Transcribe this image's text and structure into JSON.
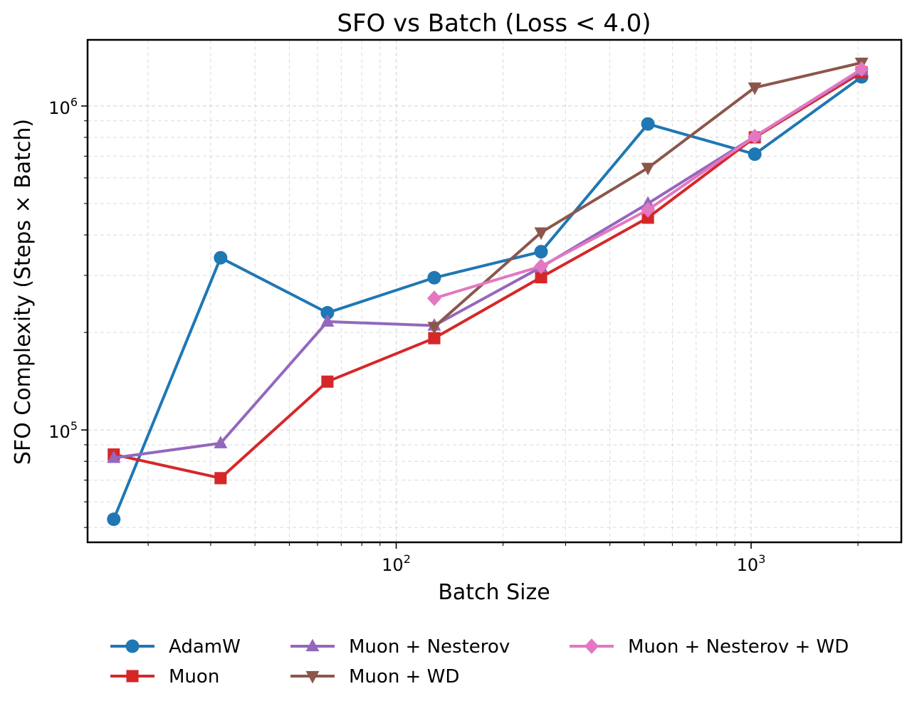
{
  "chart_data": {
    "type": "line",
    "title": "SFO vs Batch (Loss < 4.0)",
    "xlabel": "Batch Size",
    "ylabel": "SFO Complexity (Steps × Batch)",
    "x_scale": "log",
    "y_scale": "log",
    "xlim": [
      13.5,
      2650
    ],
    "ylim": [
      45000,
      1600000
    ],
    "x_ticks": [
      {
        "value": 100,
        "base": "10",
        "exp": "2"
      },
      {
        "value": 1000,
        "base": "10",
        "exp": "3"
      }
    ],
    "y_ticks": [
      {
        "value": 100000,
        "base": "10",
        "exp": "5"
      },
      {
        "value": 1000000,
        "base": "10",
        "exp": "6"
      }
    ],
    "grid": true,
    "legend_position": "bottom-outside",
    "series": [
      {
        "name": "AdamW",
        "color": "#1f77b4",
        "marker": "circle",
        "x": [
          16,
          32,
          64,
          128,
          256,
          512,
          1024,
          2048
        ],
        "y": [
          53000,
          340000,
          230000,
          295000,
          355000,
          880000,
          710000,
          1230000
        ]
      },
      {
        "name": "Muon",
        "color": "#d62728",
        "marker": "square",
        "x": [
          16,
          32,
          64,
          128,
          256,
          512,
          1024,
          2048
        ],
        "y": [
          84000,
          71000,
          141000,
          192000,
          296000,
          452000,
          800000,
          1270000
        ]
      },
      {
        "name": "Muon + Nesterov",
        "color": "#9467bd",
        "marker": "triangle-up",
        "x": [
          16,
          32,
          64,
          128,
          256,
          512,
          1024,
          2048
        ],
        "y": [
          82000,
          91000,
          216000,
          210000,
          318000,
          500000,
          805000,
          1290000
        ]
      },
      {
        "name": "Muon + WD",
        "color": "#8c564b",
        "marker": "triangle-down",
        "x": [
          128,
          256,
          512,
          1024,
          2048
        ],
        "y": [
          208000,
          407000,
          644000,
          1140000,
          1360000
        ]
      },
      {
        "name": "Muon + Nesterov + WD",
        "color": "#e377c2",
        "marker": "diamond",
        "x": [
          128,
          256,
          512,
          1024,
          2048
        ],
        "y": [
          255000,
          320000,
          478000,
          805000,
          1300000
        ]
      }
    ]
  }
}
